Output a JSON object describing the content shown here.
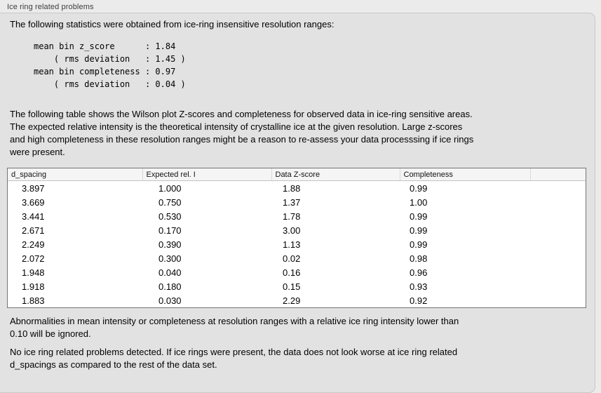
{
  "panel": {
    "title": "Ice ring related problems"
  },
  "intro": "The following statistics were obtained from ice-ring insensitive resolution ranges:",
  "stats_block": {
    "lines": [
      "mean bin z_score      : 1.84",
      "    ( rms deviation   : 1.45 )",
      "mean bin completeness : 0.97",
      "    ( rms deviation   : 0.04 )"
    ]
  },
  "description": {
    "lines": [
      "The following table shows the Wilson plot Z-scores and completeness for observed data in ice-ring sensitive areas.",
      "The expected relative intensity is the theoretical intensity of crystalline ice at the given resolution. Large z-scores",
      "and high completeness in these resolution ranges might be a reason to re-assess your data processsing if ice rings",
      "were present."
    ]
  },
  "table": {
    "columns": [
      "d_spacing",
      "Expected rel. I",
      "Data Z-score",
      "Completeness"
    ],
    "rows": [
      [
        "3.897",
        "1.000",
        "1.88",
        "0.99"
      ],
      [
        "3.669",
        "0.750",
        "1.37",
        "1.00"
      ],
      [
        "3.441",
        "0.530",
        "1.78",
        "0.99"
      ],
      [
        "2.671",
        "0.170",
        "3.00",
        "0.99"
      ],
      [
        "2.249",
        "0.390",
        "1.13",
        "0.99"
      ],
      [
        "2.072",
        "0.300",
        "0.02",
        "0.98"
      ],
      [
        "1.948",
        "0.040",
        "0.16",
        "0.96"
      ],
      [
        "1.918",
        "0.180",
        "0.15",
        "0.93"
      ],
      [
        "1.883",
        "0.030",
        "2.29",
        "0.92"
      ]
    ]
  },
  "note": {
    "lines": [
      "Abnormalities in mean intensity or completeness at resolution ranges with a relative ice ring intensity lower than",
      "0.10 will be ignored."
    ]
  },
  "conclusion": {
    "lines": [
      "No ice ring related problems detected. If ice rings were present, the data does not look worse at ice ring related",
      "d_spacings as compared to the rest of the data set."
    ]
  },
  "colors": {
    "panel_background": "#e2e2e2",
    "outer_background": "#ebebeb",
    "table_border": "#747474",
    "table_header_background": "#f5f5f5"
  }
}
